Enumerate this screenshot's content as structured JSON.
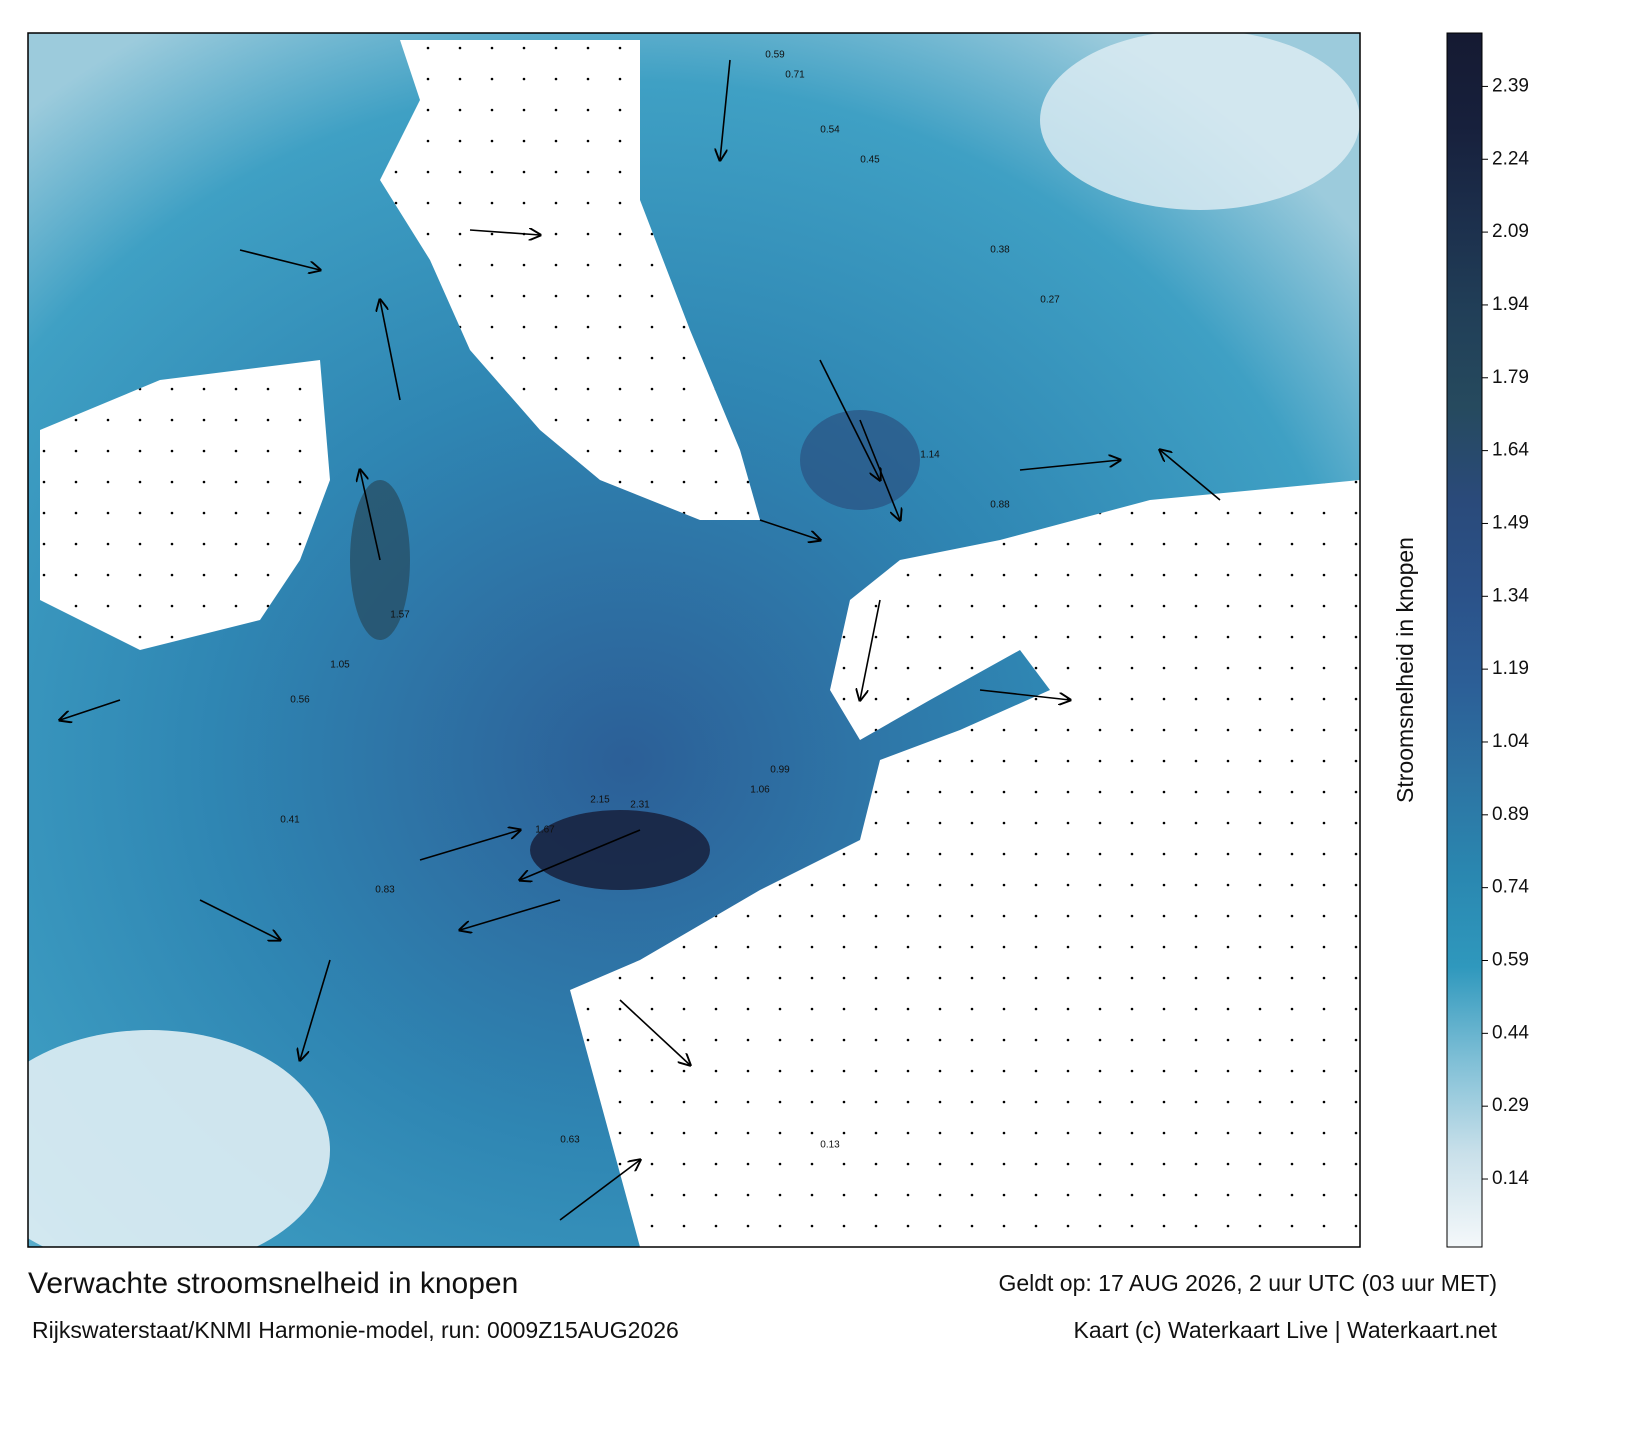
{
  "title": "Verwachte stroomsnelheid in knopen",
  "valid_time": "Geldt op: 17 AUG 2026, 2 uur UTC (03 uur MET)",
  "model_run": "Rijkswaterstaat/KNMI Harmonie-model, run: 0009Z15AUG2026",
  "credits": "Kaart (c) Waterkaart Live | Waterkaart.net",
  "colorbar": {
    "label": "Stroomsnelheid in knopen",
    "lim": [
      0,
      2.5
    ],
    "ticks": [
      0.14,
      0.29,
      0.44,
      0.59,
      0.74,
      0.89,
      1.04,
      1.19,
      1.34,
      1.49,
      1.64,
      1.79,
      1.94,
      2.09,
      2.24,
      2.39
    ],
    "colors": [
      "#f4f8fa",
      "#c9e0ea",
      "#7fbfd6",
      "#2f98bd",
      "#2a87b0",
      "#2d74a3",
      "#2c5f97",
      "#2b5289",
      "#2a4a7a",
      "#264a5e",
      "#213f58",
      "#1c2f4c",
      "#17203c",
      "#151a32"
    ]
  },
  "map_labels": [
    "0.59",
    "0.71",
    "0.54",
    "0.45",
    "1.14",
    "0.88",
    "1.57",
    "1.05",
    "2.15",
    "2.31",
    "1.67",
    "0.83",
    "0.63",
    "0.99",
    "1.06",
    "0.56",
    "0.41",
    "0.13",
    "0.38",
    "0.27"
  ]
}
